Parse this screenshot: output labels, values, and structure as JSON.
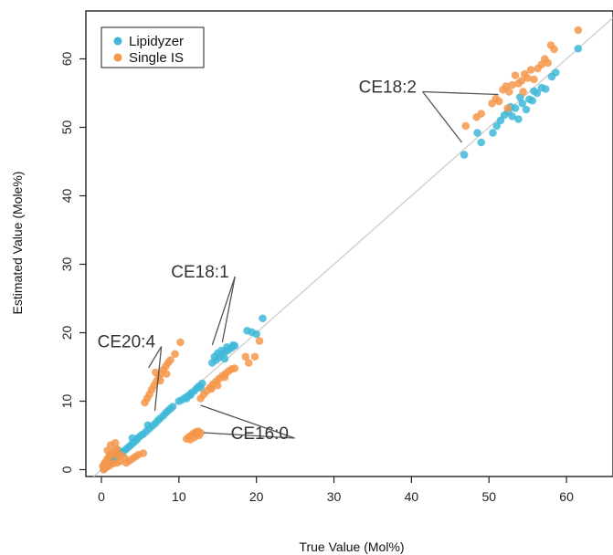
{
  "chart_data": {
    "type": "scatter",
    "title": "",
    "xlabel": "True Value (Mol%)",
    "ylabel": "Estimated Value (Mole%)",
    "xlim": [
      -2,
      66
    ],
    "ylim": [
      -1,
      67
    ],
    "xticks": [
      0,
      10,
      20,
      30,
      40,
      50,
      60
    ],
    "yticks": [
      0,
      10,
      20,
      30,
      40,
      50,
      60
    ],
    "identity_line": true,
    "legend_position": "top-left",
    "colors": {
      "Lipidyzer": "#3fb8d8",
      "Single IS": "#f5964a",
      "identity": "#cfcfcf"
    },
    "series": [
      {
        "name": "Lipidyzer",
        "points": [
          [
            0.3,
            0.2
          ],
          [
            0.5,
            0.4
          ],
          [
            0.7,
            0.6
          ],
          [
            0.9,
            0.9
          ],
          [
            1.1,
            1.0
          ],
          [
            1.3,
            1.2
          ],
          [
            1.5,
            1.4
          ],
          [
            1.8,
            1.7
          ],
          [
            2.1,
            1.9
          ],
          [
            2.4,
            2.3
          ],
          [
            2.7,
            2.6
          ],
          [
            3.0,
            2.8
          ],
          [
            3.3,
            3.1
          ],
          [
            3.6,
            3.4
          ],
          [
            3.9,
            3.7
          ],
          [
            4.2,
            4.0
          ],
          [
            4.5,
            4.3
          ],
          [
            4.8,
            4.7
          ],
          [
            5.1,
            5.0
          ],
          [
            5.4,
            5.2
          ],
          [
            5.8,
            5.6
          ],
          [
            6.2,
            6.0
          ],
          [
            6.6,
            6.4
          ],
          [
            7.0,
            6.8
          ],
          [
            7.3,
            7.2
          ],
          [
            7.6,
            7.5
          ],
          [
            8.0,
            7.9
          ],
          [
            8.3,
            8.3
          ],
          [
            8.6,
            8.6
          ],
          [
            8.9,
            8.9
          ],
          [
            9.2,
            9.2
          ],
          [
            0.4,
            0.7
          ],
          [
            1.0,
            1.6
          ],
          [
            1.6,
            2.2
          ],
          [
            2.2,
            2.8
          ],
          [
            4.0,
            4.6
          ],
          [
            6.0,
            6.5
          ],
          [
            10.0,
            10.0
          ],
          [
            10.4,
            10.2
          ],
          [
            10.8,
            10.5
          ],
          [
            11.2,
            10.8
          ],
          [
            11.6,
            11.2
          ],
          [
            12.0,
            11.5
          ],
          [
            12.3,
            11.9
          ],
          [
            12.6,
            12.2
          ],
          [
            13.0,
            12.6
          ],
          [
            11.0,
            10.4
          ],
          [
            11.5,
            10.9
          ],
          [
            12.8,
            12.0
          ],
          [
            14.3,
            15.6
          ],
          [
            14.8,
            16.0
          ],
          [
            15.2,
            16.4
          ],
          [
            15.6,
            16.8
          ],
          [
            16.0,
            17.2
          ],
          [
            16.4,
            17.5
          ],
          [
            16.8,
            17.8
          ],
          [
            17.2,
            18.1
          ],
          [
            15.0,
            17.0
          ],
          [
            15.5,
            17.4
          ],
          [
            16.2,
            17.9
          ],
          [
            17.0,
            18.2
          ],
          [
            14.6,
            16.5
          ],
          [
            15.9,
            16.2
          ],
          [
            18.8,
            20.3
          ],
          [
            19.4,
            20.1
          ],
          [
            20.0,
            19.8
          ],
          [
            20.8,
            22.1
          ],
          [
            46.8,
            46.0
          ],
          [
            48.5,
            49.2
          ],
          [
            49.0,
            47.8
          ],
          [
            50.5,
            49.2
          ],
          [
            51.0,
            50.2
          ],
          [
            51.5,
            51.0
          ],
          [
            52.0,
            51.8
          ],
          [
            52.5,
            52.3
          ],
          [
            53.0,
            51.6
          ],
          [
            53.4,
            52.8
          ],
          [
            53.8,
            51.2
          ],
          [
            54.3,
            53.5
          ],
          [
            54.8,
            52.6
          ],
          [
            55.2,
            54.1
          ],
          [
            55.6,
            53.9
          ],
          [
            56.2,
            55.0
          ],
          [
            56.8,
            55.8
          ],
          [
            57.3,
            55.6
          ],
          [
            58.1,
            57.4
          ],
          [
            58.6,
            58.0
          ],
          [
            61.5,
            61.5
          ],
          [
            54.0,
            54.4
          ],
          [
            55.8,
            55.3
          ],
          [
            52.8,
            53.0
          ]
        ]
      },
      {
        "name": "Single IS",
        "points": [
          [
            0.2,
            0.5
          ],
          [
            0.4,
            0.9
          ],
          [
            0.6,
            1.2
          ],
          [
            0.8,
            1.6
          ],
          [
            1.0,
            1.9
          ],
          [
            1.2,
            2.2
          ],
          [
            1.4,
            2.5
          ],
          [
            1.6,
            2.3
          ],
          [
            1.8,
            2.7
          ],
          [
            2.0,
            3.0
          ],
          [
            0.3,
            0.0
          ],
          [
            0.6,
            0.3
          ],
          [
            1.1,
            0.6
          ],
          [
            1.5,
            0.9
          ],
          [
            2.0,
            1.0
          ],
          [
            2.4,
            1.2
          ],
          [
            1.2,
            3.6
          ],
          [
            1.8,
            3.9
          ],
          [
            2.6,
            2.1
          ],
          [
            3.0,
            1.7
          ],
          [
            3.2,
            1.0
          ],
          [
            3.6,
            1.3
          ],
          [
            4.0,
            1.6
          ],
          [
            4.4,
            1.9
          ],
          [
            4.8,
            2.2
          ],
          [
            5.4,
            2.4
          ],
          [
            0.8,
            2.8
          ],
          [
            2.2,
            2.0
          ],
          [
            5.6,
            9.8
          ],
          [
            5.9,
            10.4
          ],
          [
            6.2,
            11.0
          ],
          [
            6.5,
            11.7
          ],
          [
            6.8,
            12.3
          ],
          [
            7.1,
            12.9
          ],
          [
            7.4,
            13.5
          ],
          [
            7.7,
            14.0
          ],
          [
            8.0,
            14.6
          ],
          [
            8.3,
            15.1
          ],
          [
            8.6,
            15.6
          ],
          [
            8.9,
            16.0
          ],
          [
            7.0,
            14.2
          ],
          [
            7.6,
            13.0
          ],
          [
            8.4,
            14.0
          ],
          [
            9.5,
            16.9
          ],
          [
            10.2,
            18.6
          ],
          [
            11.0,
            4.5
          ],
          [
            11.3,
            4.8
          ],
          [
            11.6,
            5.0
          ],
          [
            11.9,
            5.3
          ],
          [
            12.2,
            5.5
          ],
          [
            12.5,
            5.6
          ],
          [
            12.8,
            5.4
          ],
          [
            11.5,
            4.4
          ],
          [
            12.0,
            4.7
          ],
          [
            12.6,
            5.0
          ],
          [
            12.8,
            10.4
          ],
          [
            13.2,
            11.0
          ],
          [
            13.6,
            11.5
          ],
          [
            14.0,
            12.0
          ],
          [
            14.4,
            12.5
          ],
          [
            14.8,
            12.9
          ],
          [
            15.2,
            13.3
          ],
          [
            15.6,
            13.7
          ],
          [
            16.0,
            14.0
          ],
          [
            16.4,
            14.4
          ],
          [
            16.8,
            14.7
          ],
          [
            17.2,
            14.8
          ],
          [
            14.2,
            11.8
          ],
          [
            15.0,
            12.3
          ],
          [
            15.9,
            13.5
          ],
          [
            18.6,
            16.5
          ],
          [
            19.0,
            15.6
          ],
          [
            19.8,
            16.5
          ],
          [
            20.4,
            18.8
          ],
          [
            47.0,
            50.2
          ],
          [
            48.4,
            51.5
          ],
          [
            49.0,
            52.0
          ],
          [
            50.4,
            53.5
          ],
          [
            50.9,
            54.2
          ],
          [
            51.3,
            53.8
          ],
          [
            51.8,
            55.5
          ],
          [
            52.2,
            56.0
          ],
          [
            52.6,
            55.2
          ],
          [
            53.0,
            56.2
          ],
          [
            53.4,
            57.6
          ],
          [
            53.8,
            56.4
          ],
          [
            54.2,
            56.8
          ],
          [
            54.6,
            57.8
          ],
          [
            55.0,
            57.2
          ],
          [
            55.4,
            58.4
          ],
          [
            55.8,
            57.0
          ],
          [
            56.3,
            58.6
          ],
          [
            56.8,
            59.2
          ],
          [
            57.2,
            60.0
          ],
          [
            57.6,
            59.4
          ],
          [
            58.0,
            62.0
          ],
          [
            58.4,
            61.4
          ],
          [
            61.5,
            64.2
          ],
          [
            52.4,
            52.8
          ],
          [
            54.4,
            55.2
          ]
        ]
      }
    ],
    "annotations": [
      {
        "label": "CE18:2",
        "text_anchor_xy": [
          37.2,
          56.0
        ],
        "arrows_to": [
          [
            51.2,
            54.8
          ],
          [
            46.5,
            47.8
          ]
        ]
      },
      {
        "label": "CE18:1",
        "text_anchor_xy": [
          13.0,
          29.0
        ],
        "arrows_to": [
          [
            14.3,
            18.2
          ],
          [
            15.6,
            18.6
          ]
        ]
      },
      {
        "label": "CE20:4",
        "text_anchor_xy": [
          3.5,
          18.8
        ],
        "arrows_to": [
          [
            6.1,
            14.9
          ],
          [
            6.9,
            8.6
          ]
        ]
      },
      {
        "label": "CE16:0",
        "text_anchor_xy": [
          20.7,
          5.4
        ],
        "arrows_to": [
          [
            12.8,
            9.4
          ],
          [
            13.2,
            5.4
          ]
        ]
      }
    ]
  }
}
